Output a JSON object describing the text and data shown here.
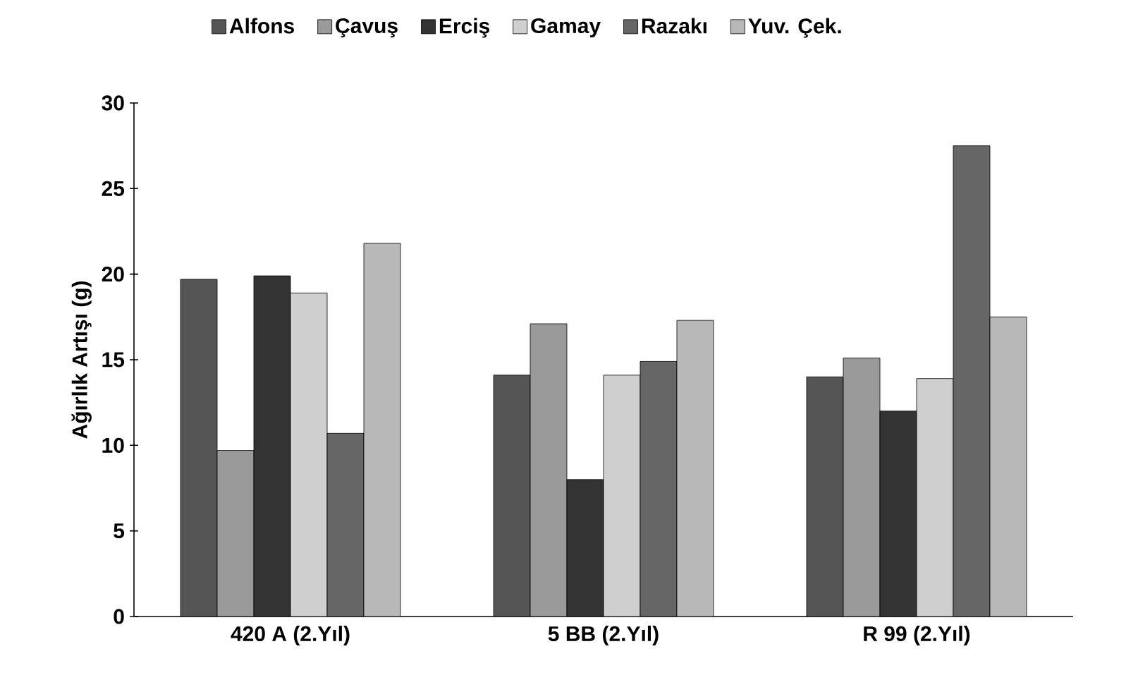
{
  "chart_data": {
    "type": "bar",
    "ylabel": "Ağırlık Artışı (g)",
    "categories": [
      "420 A (2.Yıl)",
      "5 BB (2.Yıl)",
      "R 99 (2.Yıl)"
    ],
    "series": [
      {
        "name": "Alfons",
        "color": "#555555",
        "values": [
          19.7,
          14.1,
          14.0
        ]
      },
      {
        "name": "Çavuş",
        "color": "#9a9a9a",
        "values": [
          9.7,
          17.1,
          15.1
        ]
      },
      {
        "name": "Erciş",
        "color": "#333333",
        "values": [
          19.9,
          8.0,
          12.0
        ]
      },
      {
        "name": "Gamay",
        "color": "#cfcfcf",
        "values": [
          18.9,
          14.1,
          13.9
        ]
      },
      {
        "name": "Razakı",
        "color": "#666666",
        "values": [
          10.7,
          14.9,
          27.5
        ]
      },
      {
        "name": "Yuv. Çek.",
        "color": "#b8b8b8",
        "values": [
          21.8,
          17.3,
          17.5
        ]
      }
    ],
    "ylim": [
      0,
      30
    ],
    "yticks": [
      0,
      5,
      10,
      15,
      20,
      25,
      30
    ],
    "legend": "top",
    "grid": false
  }
}
